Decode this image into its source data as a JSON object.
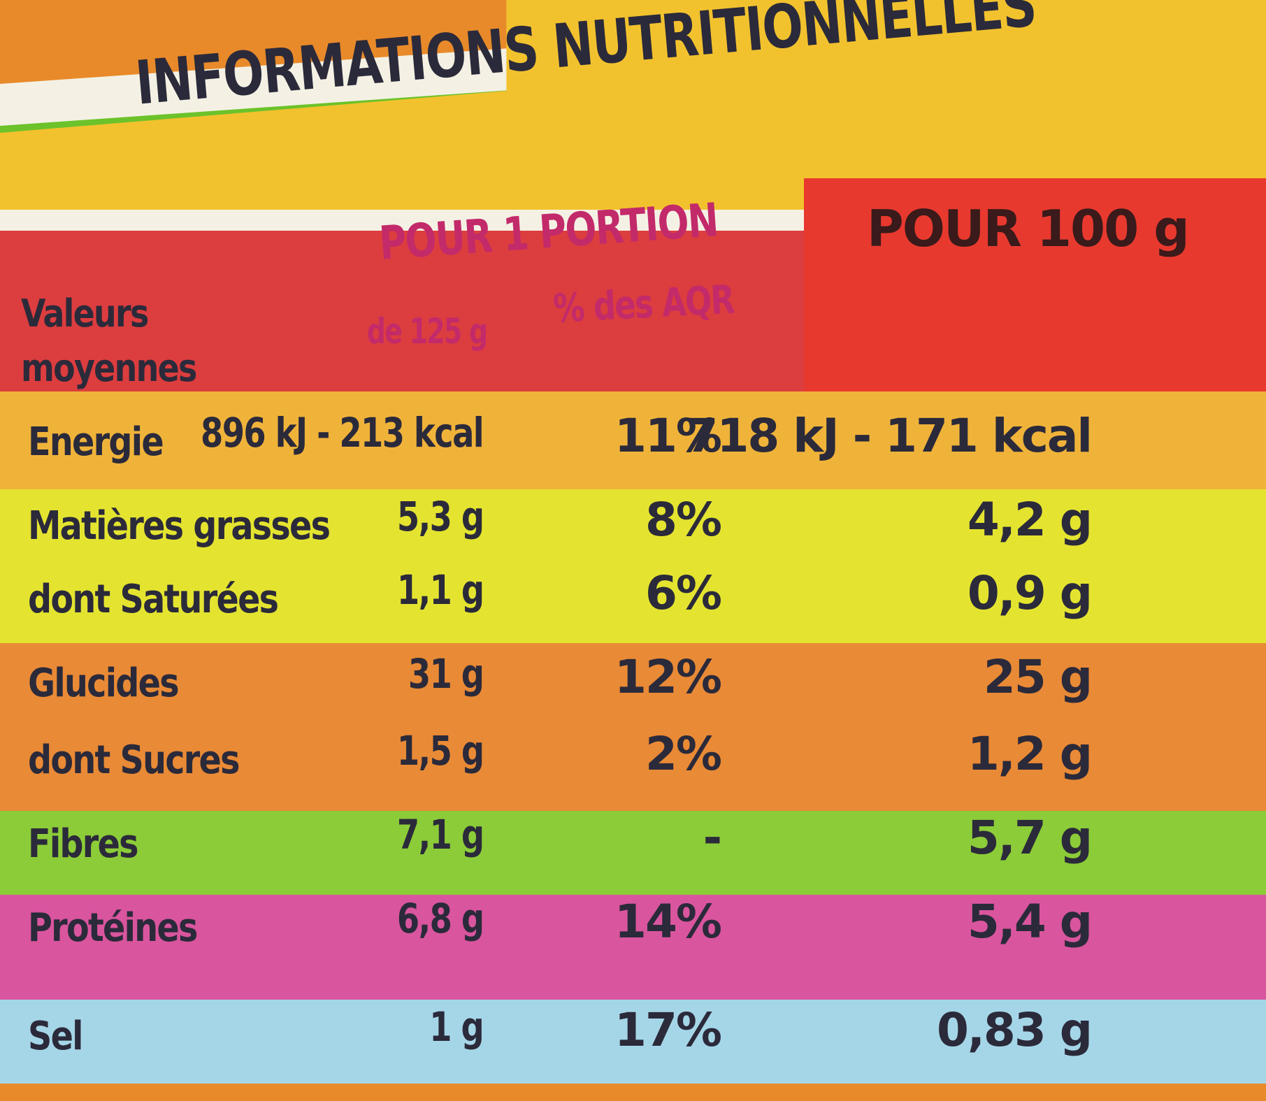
{
  "title": "INFORMATIONS NUTRITIONNELLES",
  "header": {
    "row_label": "Valeurs moyennes",
    "portion": "POUR 1 PORTION",
    "portion_size": "de 125 g",
    "aqr": "% des AQR",
    "per100": "POUR 100 g"
  },
  "table": {
    "rows": [
      {
        "label": "Energie",
        "portion": "896 kJ - 213 kcal",
        "aqr": "11%",
        "per100": "718 kJ - 171 kcal"
      },
      {
        "label": "Matières grasses",
        "portion": "5,3 g",
        "aqr": "8%",
        "per100": "4,2 g"
      },
      {
        "label": "dont Saturées",
        "portion": "1,1 g",
        "aqr": "6%",
        "per100": "0,9 g"
      },
      {
        "label": "Glucides",
        "portion": "31 g",
        "aqr": "12%",
        "per100": "25 g"
      },
      {
        "label": "dont Sucres",
        "portion": "1,5 g",
        "aqr": "2%",
        "per100": "1,2 g"
      },
      {
        "label": "Fibres",
        "portion": "7,1 g",
        "aqr": "-",
        "per100": "5,7 g"
      },
      {
        "label": "Protéines",
        "portion": "6,8 g",
        "aqr": "14%",
        "per100": "5,4 g"
      },
      {
        "label": "Sel",
        "portion": "1 g",
        "aqr": "17%",
        "per100": "0,83 g"
      }
    ]
  }
}
